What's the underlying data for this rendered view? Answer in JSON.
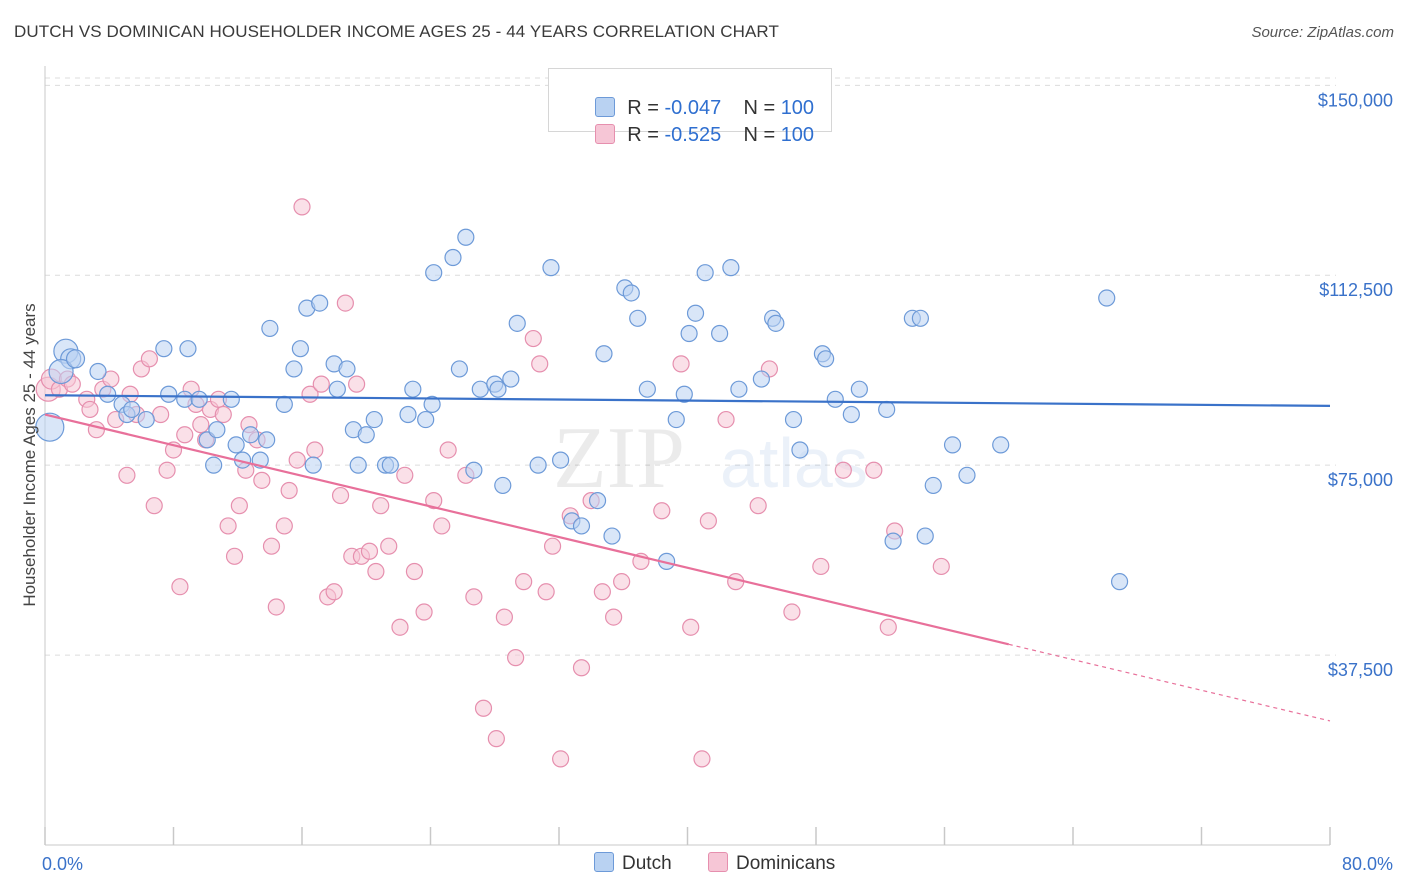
{
  "title": "DUTCH VS DOMINICAN HOUSEHOLDER INCOME AGES 25 - 44 YEARS CORRELATION CHART",
  "source": "Source: ZipAtlas.com",
  "watermark": {
    "zip": "ZIP",
    "atlas": "atlas"
  },
  "colors": {
    "dutch": "#3a72c9",
    "dutch_fill": "#b9d2f2",
    "dominican": "#e8709a",
    "dominican_fill": "#f6c6d6",
    "axis_text": "#3a72c9"
  },
  "legend": {
    "rows": [
      {
        "r_label": "R = ",
        "r_value": "-0.047",
        "n_label": "N = ",
        "n_value": "100"
      },
      {
        "r_label": "R = ",
        "r_value": "-0.525",
        "n_label": "N = ",
        "n_value": "100"
      }
    ],
    "bottom": [
      {
        "label": "Dutch"
      },
      {
        "label": "Dominicans"
      }
    ]
  },
  "chart_data": {
    "type": "scatter",
    "xlabel": "",
    "ylabel": "Householder Income Ages 25 - 44 years",
    "xlim": [
      0,
      80
    ],
    "ylim": [
      0,
      155000
    ],
    "y_ticks": [
      {
        "value": 37500,
        "label": "$37,500"
      },
      {
        "value": 75000,
        "label": "$75,000"
      },
      {
        "value": 112500,
        "label": "$112,500"
      },
      {
        "value": 150000,
        "label": "$150,000"
      }
    ],
    "x_tick_labels": [
      {
        "value": 0,
        "label": "0.0%"
      },
      {
        "value": 80,
        "label": "80.0%"
      }
    ],
    "grid": true,
    "legend_position": "top-center",
    "series": [
      {
        "name": "Dutch",
        "trend": {
          "x": [
            0,
            80
          ],
          "y": [
            88800,
            86700
          ],
          "dashed_from": null
        },
        "points": [
          [
            0.3,
            82500,
            14
          ],
          [
            1.3,
            97500,
            12
          ],
          [
            1.6,
            96000,
            10
          ],
          [
            1.0,
            93500,
            12
          ],
          [
            1.9,
            96000,
            9
          ],
          [
            3.3,
            93500,
            8
          ],
          [
            3.9,
            89000,
            8
          ],
          [
            4.8,
            87000,
            8
          ],
          [
            5.1,
            85000,
            8
          ],
          [
            6.3,
            84000,
            8
          ],
          [
            5.4,
            86000,
            8
          ],
          [
            7.4,
            98000,
            8
          ],
          [
            7.7,
            89000,
            8
          ],
          [
            8.7,
            88000,
            8
          ],
          [
            8.9,
            98000,
            8
          ],
          [
            9.6,
            88000,
            8
          ],
          [
            10.1,
            80000,
            8
          ],
          [
            10.5,
            75000,
            8
          ],
          [
            10.7,
            82000,
            8
          ],
          [
            11.6,
            88000,
            8
          ],
          [
            11.9,
            79000,
            8
          ],
          [
            12.3,
            76000,
            8
          ],
          [
            12.8,
            81000,
            8
          ],
          [
            13.4,
            76000,
            8
          ],
          [
            13.8,
            80000,
            8
          ],
          [
            14.0,
            102000,
            8
          ],
          [
            14.9,
            87000,
            8
          ],
          [
            15.5,
            94000,
            8
          ],
          [
            15.9,
            98000,
            8
          ],
          [
            16.3,
            106000,
            8
          ],
          [
            17.1,
            107000,
            8
          ],
          [
            16.7,
            75000,
            8
          ],
          [
            18.0,
            95000,
            8
          ],
          [
            18.2,
            90000,
            8
          ],
          [
            18.8,
            94000,
            8
          ],
          [
            19.2,
            82000,
            8
          ],
          [
            19.5,
            75000,
            8
          ],
          [
            20.0,
            81000,
            8
          ],
          [
            20.5,
            84000,
            8
          ],
          [
            21.2,
            75000,
            8
          ],
          [
            21.5,
            75000,
            8
          ],
          [
            22.6,
            85000,
            8
          ],
          [
            22.9,
            90000,
            8
          ],
          [
            23.7,
            84000,
            8
          ],
          [
            24.1,
            87000,
            8
          ],
          [
            24.2,
            113000,
            8
          ],
          [
            25.4,
            116000,
            8
          ],
          [
            25.8,
            94000,
            8
          ],
          [
            26.2,
            120000,
            8
          ],
          [
            26.7,
            74000,
            8
          ],
          [
            27.1,
            90000,
            8
          ],
          [
            28.0,
            91000,
            8
          ],
          [
            28.2,
            90000,
            8
          ],
          [
            28.5,
            71000,
            8
          ],
          [
            29.0,
            92000,
            8
          ],
          [
            29.4,
            103000,
            8
          ],
          [
            30.7,
            75000,
            8
          ],
          [
            31.5,
            114000,
            8
          ],
          [
            32.1,
            76000,
            8
          ],
          [
            32.8,
            64000,
            8
          ],
          [
            33.4,
            63000,
            8
          ],
          [
            34.4,
            68000,
            8
          ],
          [
            34.8,
            97000,
            8
          ],
          [
            35.3,
            61000,
            8
          ],
          [
            36.1,
            110000,
            8
          ],
          [
            36.5,
            109000,
            8
          ],
          [
            36.9,
            104000,
            8
          ],
          [
            37.5,
            90000,
            8
          ],
          [
            38.7,
            56000,
            8
          ],
          [
            39.3,
            84000,
            8
          ],
          [
            39.8,
            89000,
            8
          ],
          [
            40.1,
            101000,
            8
          ],
          [
            40.5,
            105000,
            8
          ],
          [
            41.1,
            113000,
            8
          ],
          [
            42.0,
            101000,
            8
          ],
          [
            42.7,
            114000,
            8
          ],
          [
            43.2,
            90000,
            8
          ],
          [
            44.6,
            92000,
            8
          ],
          [
            45.3,
            104000,
            8
          ],
          [
            45.5,
            103000,
            8
          ],
          [
            46.6,
            84000,
            8
          ],
          [
            47.0,
            78000,
            8
          ],
          [
            48.4,
            97000,
            8
          ],
          [
            48.6,
            96000,
            8
          ],
          [
            49.2,
            88000,
            8
          ],
          [
            50.2,
            85000,
            8
          ],
          [
            50.7,
            90000,
            8
          ],
          [
            52.4,
            86000,
            8
          ],
          [
            52.8,
            60000,
            8
          ],
          [
            54.0,
            104000,
            8
          ],
          [
            54.5,
            104000,
            8
          ],
          [
            54.8,
            61000,
            8
          ],
          [
            55.3,
            71000,
            8
          ],
          [
            56.5,
            79000,
            8
          ],
          [
            57.4,
            73000,
            8
          ],
          [
            59.5,
            79000,
            8
          ],
          [
            66.1,
            108000,
            8
          ],
          [
            66.9,
            52000,
            8
          ]
        ]
      },
      {
        "name": "Dominicans",
        "trend": {
          "x": [
            0,
            80
          ],
          "y": [
            85000,
            24500
          ],
          "dashed_from": 60
        },
        "points": [
          [
            0.2,
            90000,
            12
          ],
          [
            0.4,
            92000,
            10
          ],
          [
            0.9,
            90000,
            8
          ],
          [
            1.4,
            92000,
            8
          ],
          [
            1.7,
            91000,
            8
          ],
          [
            2.6,
            88000,
            8
          ],
          [
            2.8,
            86000,
            8
          ],
          [
            3.2,
            82000,
            8
          ],
          [
            3.6,
            90000,
            8
          ],
          [
            4.1,
            92000,
            8
          ],
          [
            4.4,
            84000,
            8
          ],
          [
            5.1,
            73000,
            8
          ],
          [
            5.3,
            89000,
            8
          ],
          [
            5.7,
            85000,
            8
          ],
          [
            6.0,
            94000,
            8
          ],
          [
            6.5,
            96000,
            8
          ],
          [
            6.8,
            67000,
            8
          ],
          [
            7.2,
            85000,
            8
          ],
          [
            7.6,
            74000,
            8
          ],
          [
            8.0,
            78000,
            8
          ],
          [
            8.4,
            51000,
            8
          ],
          [
            8.7,
            81000,
            8
          ],
          [
            9.1,
            90000,
            8
          ],
          [
            9.4,
            87000,
            8
          ],
          [
            9.7,
            83000,
            8
          ],
          [
            10.0,
            80000,
            8
          ],
          [
            10.3,
            86000,
            8
          ],
          [
            10.8,
            88000,
            8
          ],
          [
            11.1,
            85000,
            8
          ],
          [
            11.4,
            63000,
            8
          ],
          [
            11.8,
            57000,
            8
          ],
          [
            12.1,
            67000,
            8
          ],
          [
            12.5,
            74000,
            8
          ],
          [
            12.7,
            83000,
            8
          ],
          [
            13.2,
            80000,
            8
          ],
          [
            13.5,
            72000,
            8
          ],
          [
            14.1,
            59000,
            8
          ],
          [
            14.4,
            47000,
            8
          ],
          [
            14.9,
            63000,
            8
          ],
          [
            15.2,
            70000,
            8
          ],
          [
            15.7,
            76000,
            8
          ],
          [
            16.0,
            126000,
            8
          ],
          [
            16.5,
            89000,
            8
          ],
          [
            16.8,
            78000,
            8
          ],
          [
            17.2,
            91000,
            8
          ],
          [
            17.6,
            49000,
            8
          ],
          [
            18.0,
            50000,
            8
          ],
          [
            18.4,
            69000,
            8
          ],
          [
            18.7,
            107000,
            8
          ],
          [
            19.1,
            57000,
            8
          ],
          [
            19.4,
            91000,
            8
          ],
          [
            19.7,
            57000,
            8
          ],
          [
            20.2,
            58000,
            8
          ],
          [
            20.6,
            54000,
            8
          ],
          [
            20.9,
            67000,
            8
          ],
          [
            21.4,
            59000,
            8
          ],
          [
            22.1,
            43000,
            8
          ],
          [
            22.4,
            73000,
            8
          ],
          [
            23.0,
            54000,
            8
          ],
          [
            23.6,
            46000,
            8
          ],
          [
            24.2,
            68000,
            8
          ],
          [
            24.7,
            63000,
            8
          ],
          [
            25.1,
            78000,
            8
          ],
          [
            26.2,
            73000,
            8
          ],
          [
            26.7,
            49000,
            8
          ],
          [
            27.3,
            27000,
            8
          ],
          [
            28.1,
            21000,
            8
          ],
          [
            28.6,
            45000,
            8
          ],
          [
            29.3,
            37000,
            8
          ],
          [
            29.8,
            52000,
            8
          ],
          [
            30.4,
            100000,
            8
          ],
          [
            31.2,
            50000,
            8
          ],
          [
            31.6,
            59000,
            8
          ],
          [
            32.1,
            17000,
            8
          ],
          [
            32.7,
            65000,
            8
          ],
          [
            33.4,
            35000,
            8
          ],
          [
            34.0,
            68000,
            8
          ],
          [
            34.7,
            50000,
            8
          ],
          [
            35.4,
            45000,
            8
          ],
          [
            35.9,
            52000,
            8
          ],
          [
            37.1,
            56000,
            8
          ],
          [
            38.4,
            66000,
            8
          ],
          [
            39.6,
            95000,
            8
          ],
          [
            40.2,
            43000,
            8
          ],
          [
            40.9,
            17000,
            8
          ],
          [
            41.3,
            64000,
            8
          ],
          [
            42.4,
            84000,
            8
          ],
          [
            43.0,
            52000,
            8
          ],
          [
            44.4,
            67000,
            8
          ],
          [
            45.1,
            94000,
            8
          ],
          [
            46.5,
            46000,
            8
          ],
          [
            48.3,
            55000,
            8
          ],
          [
            49.7,
            74000,
            8
          ],
          [
            51.6,
            74000,
            8
          ],
          [
            52.5,
            43000,
            8
          ],
          [
            52.9,
            62000,
            8
          ],
          [
            55.8,
            55000,
            8
          ],
          [
            30.8,
            95000,
            8
          ]
        ]
      }
    ]
  }
}
